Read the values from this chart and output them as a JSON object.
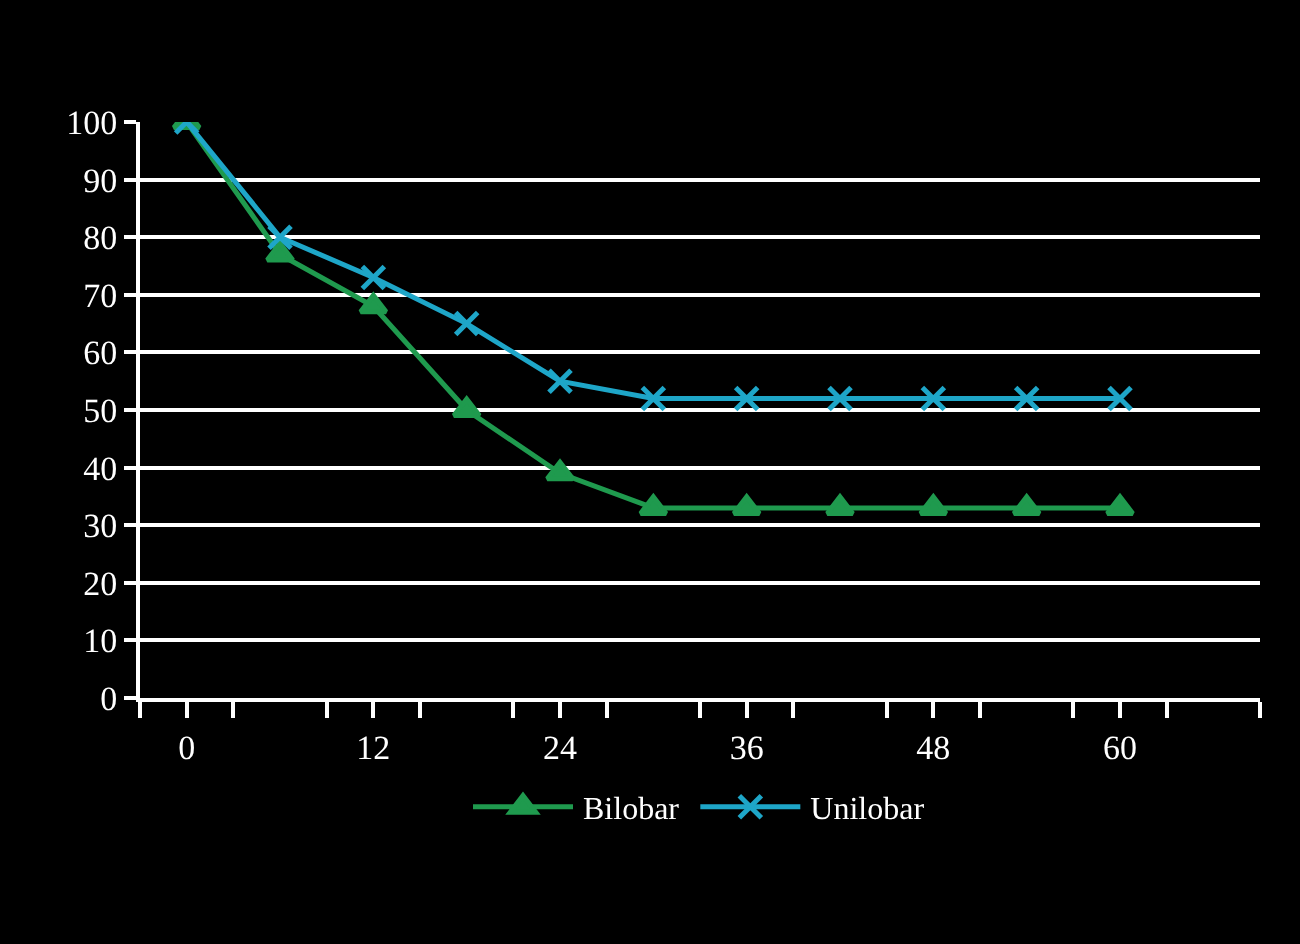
{
  "chart_data": {
    "type": "line",
    "x": [
      0,
      6,
      12,
      18,
      24,
      30,
      36,
      42,
      48,
      54,
      60
    ],
    "series": [
      {
        "name": "Bilobar",
        "color": "#1f9a4e",
        "marker": "triangle",
        "values": [
          100,
          77,
          68,
          50,
          39,
          33,
          33,
          33,
          33,
          33,
          33
        ]
      },
      {
        "name": "Unilobar",
        "color": "#1ea6c8",
        "marker": "cross",
        "values": [
          100,
          80,
          73,
          65,
          55,
          52,
          52,
          52,
          52,
          52,
          52
        ]
      }
    ],
    "xlim": [
      -3,
      69
    ],
    "xticks": [
      {
        "value": -3,
        "label": null
      },
      0,
      {
        "value": 3,
        "label": null
      },
      {
        "value": 9,
        "label": null
      },
      12,
      {
        "value": 15,
        "label": null
      },
      {
        "value": 21,
        "label": null
      },
      24,
      {
        "value": 27,
        "label": null
      },
      {
        "value": 33,
        "label": null
      },
      36,
      {
        "value": 39,
        "label": null
      },
      {
        "value": 45,
        "label": null
      },
      48,
      {
        "value": 51,
        "label": null
      },
      {
        "value": 57,
        "label": null
      },
      60,
      {
        "value": 63,
        "label": null
      },
      {
        "value": 69,
        "label": null
      }
    ],
    "ylim": [
      0,
      100
    ],
    "yticks": [
      0,
      10,
      20,
      30,
      40,
      50,
      60,
      70,
      80,
      90,
      100
    ],
    "grid": "y",
    "legend": "bottom",
    "line_style": "solid"
  }
}
